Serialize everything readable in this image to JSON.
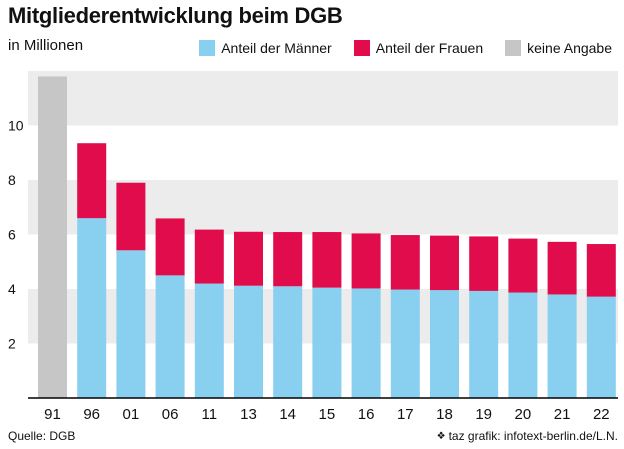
{
  "title": "Mitgliederentwicklung beim DGB",
  "subtitle": "in Millionen",
  "source": "Quelle: DGB",
  "credit": "taz grafik: infotext-berlin.de/L.N.",
  "credit_icon": "paw-icon",
  "colors": {
    "men": "#89cff0",
    "women": "#e00c4c",
    "unknown": "#c6c6c6",
    "band": "#ececec",
    "axis": "#000000"
  },
  "chart_data": {
    "type": "bar",
    "stacked": true,
    "title": "Mitgliederentwicklung beim DGB",
    "subtitle": "in Millionen",
    "categories": [
      "91",
      "96",
      "01",
      "06",
      "11",
      "13",
      "14",
      "15",
      "16",
      "17",
      "18",
      "19",
      "20",
      "21",
      "22"
    ],
    "series": [
      {
        "name": "Anteil der Männer",
        "key": "men",
        "values": [
          null,
          6.6,
          5.42,
          4.5,
          4.2,
          4.12,
          4.1,
          4.05,
          4.02,
          3.98,
          3.96,
          3.93,
          3.87,
          3.8,
          3.72
        ]
      },
      {
        "name": "Anteil der Frauen",
        "key": "women",
        "values": [
          null,
          2.75,
          2.48,
          2.09,
          1.98,
          1.98,
          1.99,
          2.04,
          2.02,
          2.0,
          2.0,
          2.0,
          1.98,
          1.93,
          1.93
        ]
      },
      {
        "name": "keine Angabe",
        "key": "unknown",
        "values": [
          11.8,
          null,
          null,
          null,
          null,
          null,
          null,
          null,
          null,
          null,
          null,
          null,
          null,
          null,
          null
        ]
      }
    ],
    "yticks": [
      2,
      4,
      6,
      8,
      10
    ],
    "ylim": [
      0,
      12
    ],
    "legend_position": "top-right",
    "grid": "alternating horizontal bands"
  }
}
